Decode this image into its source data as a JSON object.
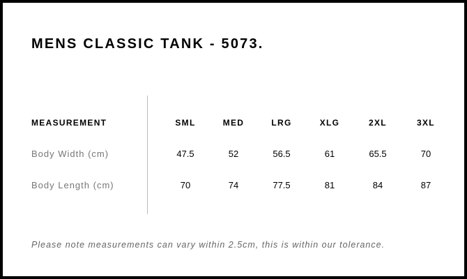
{
  "title": "MENS CLASSIC TANK - 5073.",
  "table": {
    "header": "MEASUREMENT",
    "sizes": [
      "SML",
      "MED",
      "LRG",
      "XLG",
      "2XL",
      "3XL"
    ],
    "rows": [
      {
        "label": "Body Width (cm)",
        "values": [
          "47.5",
          "52",
          "56.5",
          "61",
          "65.5",
          "70"
        ]
      },
      {
        "label": "Body Length (cm)",
        "values": [
          "70",
          "74",
          "77.5",
          "81",
          "84",
          "87"
        ]
      }
    ]
  },
  "note": "Please note measurements can vary within 2.5cm, this is within our tolerance."
}
